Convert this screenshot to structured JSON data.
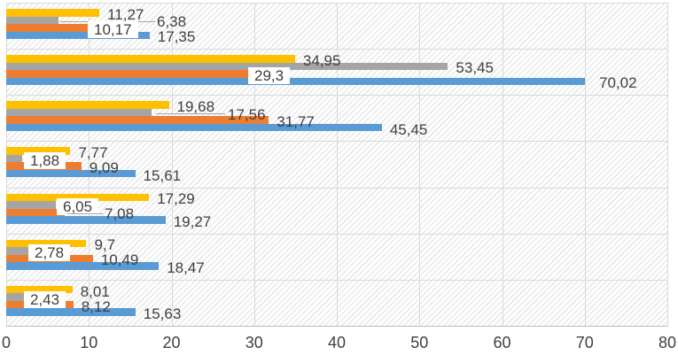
{
  "chart_data": {
    "type": "bar",
    "orientation": "horizontal",
    "title": "",
    "xlabel": "",
    "ylabel": "",
    "xlim": [
      0,
      80
    ],
    "x_ticks": [
      0,
      10,
      20,
      30,
      40,
      50,
      60,
      70,
      80
    ],
    "x_tick_labels": [
      "0",
      "10",
      "20",
      "30",
      "40",
      "50",
      "60",
      "70",
      "80"
    ],
    "grid": true,
    "legend_position": "none",
    "categories": [
      "",
      "",
      "",
      "",
      "",
      "",
      ""
    ],
    "label_decimal_separator": ",",
    "series": [
      {
        "name": "yellow-series",
        "color": "#FFC000",
        "values": [
          11.27,
          34.95,
          19.68,
          7.77,
          17.29,
          9.7,
          8.01
        ],
        "labels": [
          "11,27",
          "34,95",
          "19,68",
          "7,77",
          "17,29",
          "9,7",
          "8,01"
        ]
      },
      {
        "name": "gray-series",
        "color": "#A5A5A5",
        "values": [
          6.38,
          53.45,
          17.56,
          1.88,
          6.05,
          2.78,
          2.43
        ],
        "labels": [
          "6,38",
          "53,45",
          "17,56",
          "1,88",
          "6,05",
          "2,78",
          "2,43"
        ]
      },
      {
        "name": "orange-series",
        "color": "#ED7D31",
        "values": [
          10.17,
          29.3,
          31.77,
          9.09,
          7.08,
          10.49,
          8.12
        ],
        "labels": [
          "10,17",
          "29,3",
          "31,77",
          "9,09",
          "7,08",
          "10,49",
          "8,12"
        ]
      },
      {
        "name": "blue-series",
        "color": "#5B9BD5",
        "values": [
          17.35,
          70.02,
          45.45,
          15.61,
          19.27,
          18.47,
          15.63
        ],
        "labels": [
          "17,35",
          "70,02",
          "45,45",
          "15,61",
          "19,27",
          "18,47",
          "15,63"
        ]
      }
    ]
  }
}
